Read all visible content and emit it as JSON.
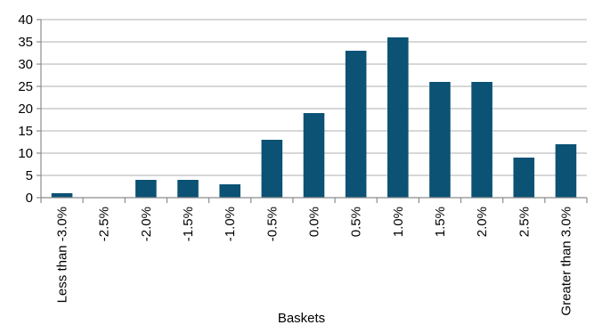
{
  "chart_data": {
    "type": "bar",
    "categories": [
      "Less than -3.0%",
      "-2.5%",
      "-2.0%",
      "-1.5%",
      "-1.0%",
      "-0.5%",
      "0.0%",
      "0.5%",
      "1.0%",
      "1.5%",
      "2.0%",
      "2.5%",
      "Greater than 3.0%"
    ],
    "values": [
      1,
      0,
      4,
      4,
      3,
      13,
      19,
      33,
      36,
      26,
      26,
      9,
      12
    ],
    "title": "",
    "xlabel": "Baskets",
    "ylabel": "",
    "ylim": [
      0,
      40
    ],
    "yticks": [
      "0",
      "5",
      "10",
      "15",
      "20",
      "25",
      "30",
      "35",
      "40"
    ],
    "grid": true,
    "legend": "none",
    "colors": {
      "bar": "#0b5274",
      "grid": "#bfbfbf",
      "axis": "#8c8c8c"
    }
  }
}
